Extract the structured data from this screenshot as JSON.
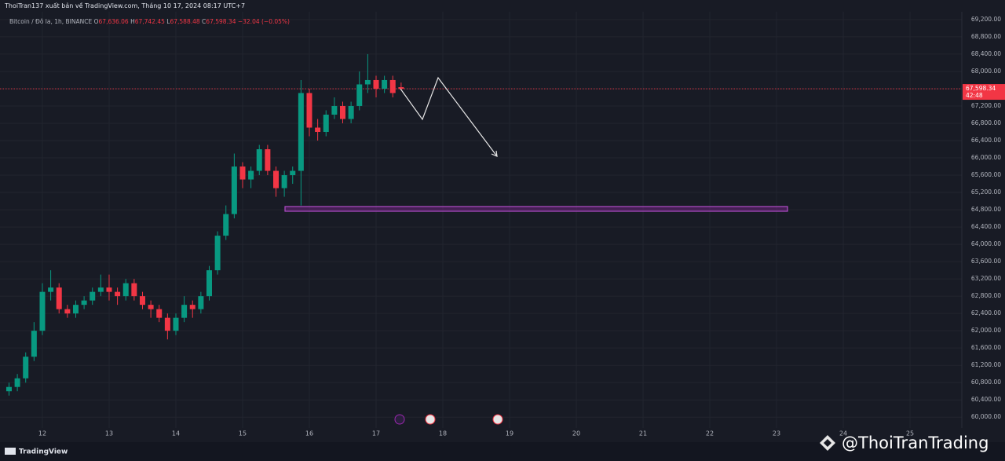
{
  "header": {
    "publisher": "ThoiTran137 xuất bản về TradingView.com, Tháng 10 17, 2024 08:17 UTC+7"
  },
  "chart_data": {
    "type": "candlestick",
    "symbol": "Bitcoin / Đô la, 1h, BINANCE",
    "legend_values": [
      {
        "label": "O",
        "value": "67,636.06"
      },
      {
        "label": "H",
        "value": "67,742.45"
      },
      {
        "label": "L",
        "value": "67,588.48"
      },
      {
        "label": "C",
        "value": "67,598.34"
      }
    ],
    "change": "−32.04 (−0.05%)",
    "x": [
      11.5,
      11.625,
      11.75,
      11.875,
      12,
      12.125,
      12.25,
      12.375,
      12.5,
      12.625,
      12.75,
      12.875,
      13,
      13.125,
      13.25,
      13.375,
      13.5,
      13.625,
      13.75,
      13.875,
      14,
      14.125,
      14.25,
      14.375,
      14.5,
      14.625,
      14.75,
      14.875,
      15,
      15.125,
      15.25,
      15.375,
      15.5,
      15.625,
      15.75,
      15.875,
      16,
      16.125,
      16.25,
      16.375,
      16.5,
      16.625,
      16.75,
      16.875,
      17,
      17.125,
      17.25,
      17.375
    ],
    "open": [
      60600,
      60700,
      60900,
      61400,
      62000,
      62900,
      63000,
      62500,
      62400,
      62600,
      62700,
      62900,
      63000,
      62900,
      62800,
      63100,
      62800,
      62600,
      62500,
      62300,
      62000,
      62300,
      62600,
      62500,
      62800,
      63400,
      64200,
      64700,
      65800,
      65500,
      65700,
      66200,
      65700,
      65300,
      65600,
      65700,
      67500,
      66700,
      66600,
      67000,
      67200,
      66900,
      67200,
      67700,
      67800,
      67600,
      67800,
      67636.06
    ],
    "high": [
      60800,
      61000,
      61500,
      62200,
      63100,
      63400,
      63100,
      62600,
      62700,
      62800,
      63000,
      63300,
      63300,
      63000,
      63200,
      63200,
      62900,
      62700,
      62600,
      62400,
      62400,
      62800,
      62700,
      62900,
      63500,
      64300,
      64900,
      66100,
      65900,
      65800,
      66300,
      66300,
      65800,
      65700,
      65800,
      67800,
      67600,
      66900,
      67100,
      67400,
      67300,
      67300,
      68000,
      68400,
      67900,
      67900,
      67900,
      67742.45
    ],
    "low": [
      60500,
      60600,
      60800,
      61300,
      61900,
      62700,
      62400,
      62300,
      62300,
      62500,
      62600,
      62800,
      62700,
      62600,
      62700,
      62700,
      62500,
      62300,
      62200,
      61800,
      61900,
      62200,
      62300,
      62400,
      62700,
      63300,
      64100,
      64600,
      65300,
      65300,
      65600,
      65600,
      65100,
      65100,
      65400,
      64900,
      66500,
      66400,
      66500,
      66900,
      66800,
      66800,
      67100,
      67500,
      67400,
      67500,
      67400,
      67588.48
    ],
    "close": [
      60700,
      60900,
      61400,
      62000,
      62900,
      63000,
      62500,
      62400,
      62600,
      62700,
      62900,
      63000,
      62900,
      62800,
      63100,
      62800,
      62600,
      62500,
      62300,
      62000,
      62300,
      62600,
      62500,
      62800,
      63400,
      64200,
      64700,
      65800,
      65500,
      65700,
      66200,
      65700,
      65300,
      65600,
      65700,
      67500,
      66700,
      66600,
      67000,
      67200,
      66900,
      67200,
      67700,
      67800,
      67600,
      67800,
      67500,
      67598.34
    ],
    "up_color": "#089981",
    "down_color": "#f23645",
    "xlim": [
      11.365,
      25.776
    ],
    "xticks": [
      12,
      13,
      14,
      15,
      16,
      17,
      18,
      19,
      20,
      21,
      22,
      23,
      24,
      25
    ],
    "ylim": [
      59750,
      69380
    ],
    "yticks": [
      {
        "value": 60000,
        "label": "60,000.00"
      },
      {
        "value": 60400,
        "label": "60,400.00"
      },
      {
        "value": 60800,
        "label": "60,800.00"
      },
      {
        "value": 61200,
        "label": "61,200.00"
      },
      {
        "value": 61600,
        "label": "61,600.00"
      },
      {
        "value": 62000,
        "label": "62,000.00"
      },
      {
        "value": 62400,
        "label": "62,400.00"
      },
      {
        "value": 62800,
        "label": "62,800.00"
      },
      {
        "value": 63200,
        "label": "63,200.00"
      },
      {
        "value": 63600,
        "label": "63,600.00"
      },
      {
        "value": 64000,
        "label": "64,000.00"
      },
      {
        "value": 64400,
        "label": "64,400.00"
      },
      {
        "value": 64800,
        "label": "64,800.00"
      },
      {
        "value": 65200,
        "label": "65,200.00"
      },
      {
        "value": 65600,
        "label": "65,600.00"
      },
      {
        "value": 66000,
        "label": "66,000.00"
      },
      {
        "value": 66400,
        "label": "66,400.00"
      },
      {
        "value": 66800,
        "label": "66,800.00"
      },
      {
        "value": 67200,
        "label": "67,200.00"
      },
      {
        "value": 67600,
        "label": "67,600.00"
      },
      {
        "value": 68000,
        "label": "68,000.00"
      },
      {
        "value": 68400,
        "label": "68,400.00"
      },
      {
        "value": 68800,
        "label": "68,800.00"
      },
      {
        "value": 69200,
        "label": "69,200.00"
      }
    ],
    "last_price": {
      "value": 67598.34,
      "label": "67,598.34"
    },
    "countdown": "42:48",
    "grid": true
  },
  "footer": {
    "brand": "TradingView",
    "watermark": "@ThoiTranTrading"
  }
}
